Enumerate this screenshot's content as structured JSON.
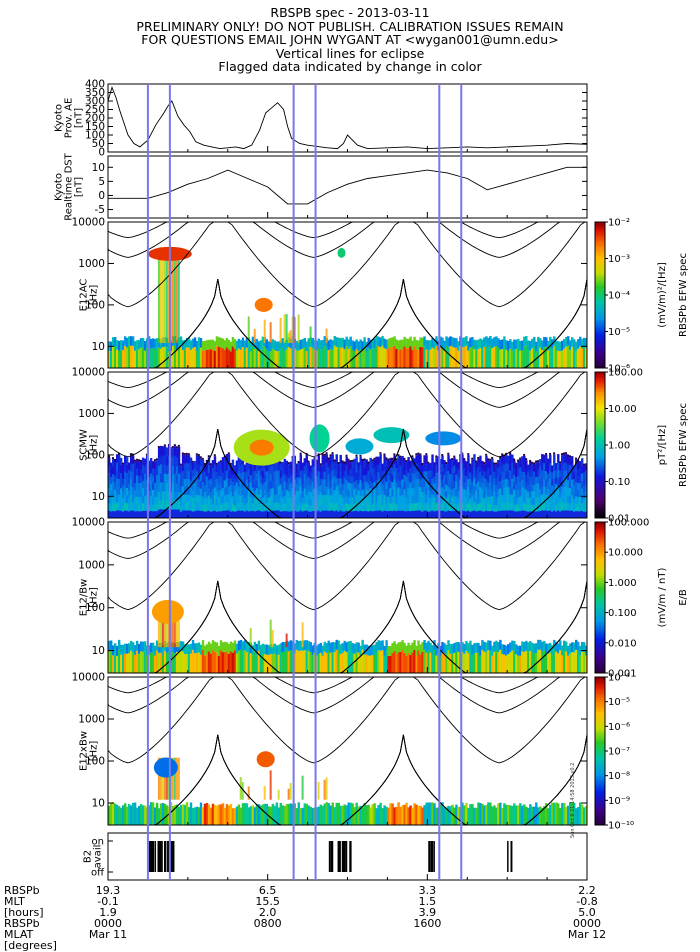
{
  "header": {
    "line1": "RBSPB spec - 2013-03-11",
    "line2": "PRELIMINARY ONLY! DO NOT PUBLISH. CALIBRATION ISSUES REMAIN",
    "line3": "FOR QUESTIONS EMAIL JOHN WYGANT AT <wygan001@umn.edu>",
    "line4": "Vertical lines for eclipse",
    "line5": "Flagged data indicated by change in color"
  },
  "stamp": "Sun Oct 6 21:14:58 2013 v0.2",
  "chart_data": [
    {
      "type": "line",
      "id": "kyoto-ae",
      "ylabel_lines": [
        "Kyoto",
        "Prov. AE",
        "[nT]"
      ],
      "yticks": [
        0,
        50,
        100,
        150,
        200,
        250,
        300,
        350,
        400
      ],
      "ylim": [
        0,
        400
      ],
      "xlim_hours": [
        0,
        24
      ],
      "x_hours": [
        0,
        0.2,
        0.4,
        0.6,
        0.8,
        1.0,
        1.3,
        1.6,
        2.0,
        2.4,
        2.8,
        3.0,
        3.2,
        3.5,
        3.8,
        4.1,
        4.4,
        4.8,
        5.2,
        5.6,
        6.0,
        6.4,
        6.8,
        7.2,
        7.6,
        7.9,
        8.2,
        8.5,
        8.8,
        9.0,
        9.2,
        9.6,
        10,
        11,
        11.5,
        11.8,
        12,
        12.5,
        13,
        14,
        15,
        16,
        17,
        18,
        19,
        20,
        21,
        22,
        23,
        24
      ],
      "values": [
        300,
        380,
        320,
        240,
        170,
        100,
        50,
        30,
        70,
        160,
        230,
        270,
        300,
        210,
        160,
        120,
        60,
        40,
        30,
        20,
        25,
        30,
        20,
        40,
        130,
        230,
        260,
        290,
        250,
        150,
        80,
        50,
        40,
        25,
        20,
        50,
        100,
        40,
        20,
        25,
        30,
        20,
        25,
        30,
        25,
        30,
        35,
        40,
        50,
        45
      ]
    },
    {
      "type": "line",
      "id": "kyoto-dst",
      "ylabel_lines": [
        "Kyoto",
        "Realtime DST",
        "[nT]"
      ],
      "yticks": [
        -5,
        0,
        5,
        10
      ],
      "ylim": [
        -8,
        14
      ],
      "xlim_hours": [
        0,
        24
      ],
      "x_hours": [
        0,
        2,
        3,
        4,
        5,
        6,
        7,
        8,
        9,
        10,
        11,
        12,
        13,
        14,
        15,
        16,
        17,
        18,
        19,
        20,
        21,
        22,
        23,
        24
      ],
      "values": [
        -1,
        -1,
        1,
        4,
        6,
        9,
        6,
        3,
        -3,
        -3,
        1,
        4,
        6,
        7,
        8,
        9,
        8,
        6,
        2,
        4,
        6,
        8,
        10,
        10
      ]
    },
    {
      "type": "heatmap",
      "id": "e12ac",
      "ylabel_lines": [
        "E12AC",
        "[Hz]"
      ],
      "yticks": [
        "10",
        "100",
        "1000",
        "10000"
      ],
      "ylim_log": [
        3,
        10000
      ],
      "color_range_log": [
        -6,
        -2
      ],
      "color_ticks": [
        "10⁻⁶",
        "10⁻⁵",
        "10⁻⁴",
        "10⁻³",
        "10⁻²"
      ],
      "color_label": "(mV/m)²/[Hz]",
      "color_title": "RBSPb EFW spec"
    },
    {
      "type": "heatmap",
      "id": "scmw",
      "ylabel_lines": [
        "SCMW",
        "[Hz]"
      ],
      "yticks": [
        "10",
        "100",
        "1000",
        "10000"
      ],
      "ylim_log": [
        3,
        10000
      ],
      "color_range_log": [
        -2,
        2
      ],
      "color_ticks": [
        "0.01",
        "0.10",
        "1.00",
        "10.00",
        "100.00"
      ],
      "color_label": "pT²/[Hz]",
      "color_title": "RBSPb EFW spec"
    },
    {
      "type": "heatmap",
      "id": "e12-bw",
      "ylabel_lines": [
        "E12/Bw",
        "[Hz]"
      ],
      "yticks": [
        "10",
        "100",
        "1000",
        "10000"
      ],
      "ylim_log": [
        3,
        10000
      ],
      "color_range_log": [
        -3,
        2
      ],
      "color_ticks": [
        "0.001",
        "0.010",
        "0.100",
        "1.000",
        "10.000",
        "100.000"
      ],
      "color_label": "(mV/m / nT)",
      "color_title": "E/B"
    },
    {
      "type": "heatmap",
      "id": "e12xbw",
      "ylabel_lines": [
        "E12xBw",
        "[Hz]"
      ],
      "yticks": [
        "10",
        "100",
        "1000",
        "10000"
      ],
      "ylim_log": [
        3,
        10000
      ],
      "color_range_log": [
        -10,
        -4
      ],
      "color_ticks": [
        "10⁻¹⁰",
        "10⁻⁹",
        "10⁻⁸",
        "10⁻⁷",
        "10⁻⁶",
        "10⁻⁵",
        "10⁻⁴"
      ],
      "color_label": "",
      "color_title": ""
    },
    {
      "type": "bar",
      "id": "b2-avail",
      "ylabel_lines": [
        "B2",
        "avail"
      ],
      "ytick_labels": [
        "on",
        "off"
      ]
    }
  ],
  "eclipse_lines_hours": [
    2.0,
    3.1,
    9.3,
    10.4,
    16.6,
    17.7
  ],
  "orbit_apogee_hours": [
    5.5,
    14.8,
    24.0
  ],
  "orbit_perigee_hours": [
    1.0,
    10.3,
    19.6
  ],
  "footer": {
    "row_labels": [
      "RBSPb",
      "MLT",
      "[hours]",
      "RBSPb",
      "MLAT",
      "[degrees]"
    ],
    "columns": [
      {
        "x_hours": 0,
        "mlt_label": "19.3",
        "mlat_label": "-0.1",
        "hours_val": "1.9",
        "time": "0000",
        "date": "Mar 11"
      },
      {
        "x_hours": 8,
        "mlt_label": "6.5",
        "mlat_label": "15.5",
        "hours_val": "2.0",
        "time": "0800",
        "date": ""
      },
      {
        "x_hours": 16,
        "mlt_label": "3.3",
        "mlat_label": "1.5",
        "hours_val": "3.9",
        "time": "1600",
        "date": ""
      },
      {
        "x_hours": 24,
        "mlt_label": "2.2",
        "mlat_label": "-0.8",
        "hours_val": "5.0",
        "time": "0000",
        "date": "Mar 12"
      }
    ]
  }
}
